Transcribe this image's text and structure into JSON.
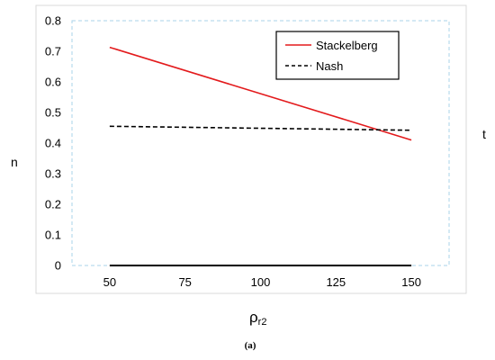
{
  "chart_data": {
    "type": "line",
    "title": "",
    "ylabel": "n",
    "right_label": "t",
    "xlabel_main": "ρ",
    "xlabel_sub": "r2",
    "caption": "(a)",
    "x": [
      50,
      75,
      100,
      125,
      150
    ],
    "xticks": [
      "50",
      "75",
      "100",
      "125",
      "150"
    ],
    "xlim": [
      37.5,
      162.5
    ],
    "ylim": [
      0,
      0.8
    ],
    "yticks": [
      "0",
      "0.1",
      "0.2",
      "0.3",
      "0.4",
      "0.5",
      "0.6",
      "0.7",
      "0.8"
    ],
    "legend_position": "top-right",
    "grid": false,
    "series": [
      {
        "name": "Stackelberg",
        "x": [
          50,
          150
        ],
        "y": [
          0.713,
          0.41
        ],
        "color": "#e31a1c",
        "style": "solid"
      },
      {
        "name": "Nash",
        "x": [
          50,
          150
        ],
        "y": [
          0.455,
          0.442
        ],
        "color": "#000000",
        "style": "dashed"
      }
    ]
  }
}
